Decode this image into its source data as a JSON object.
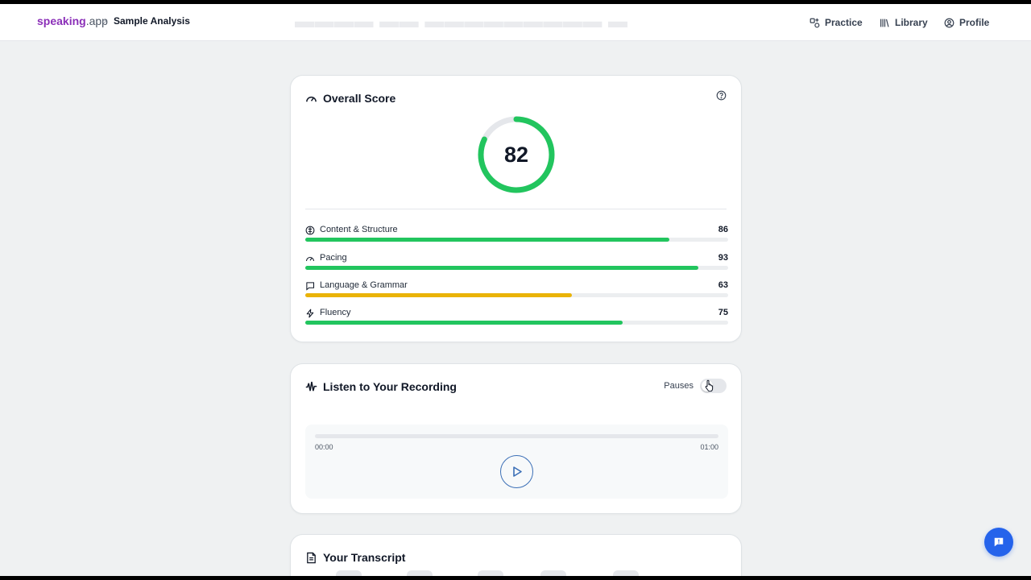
{
  "header": {
    "brand_main": "speaking",
    "brand_suffix": ".app",
    "breadcrumb": "Sample Analysis",
    "nav": {
      "practice": "Practice",
      "library": "Library",
      "profile": "Profile"
    }
  },
  "score_card": {
    "title": "Overall Score",
    "overall": 82,
    "overall_display": "82",
    "metrics": [
      {
        "label": "Content & Structure",
        "value": 86,
        "display": "86",
        "color": "#22c55e",
        "icon": "brain-icon"
      },
      {
        "label": "Pacing",
        "value": 93,
        "display": "93",
        "color": "#22c55e",
        "icon": "gauge-icon"
      },
      {
        "label": "Language & Grammar",
        "value": 63,
        "display": "63",
        "color": "#eab308",
        "icon": "speech-bubble-icon"
      },
      {
        "label": "Fluency",
        "value": 75,
        "display": "75",
        "color": "#22c55e",
        "icon": "lightning-icon"
      }
    ]
  },
  "recording_card": {
    "title": "Listen to Your Recording",
    "pauses_label": "Pauses",
    "current_time": "00:00",
    "duration": "01:00",
    "progress": 0
  },
  "transcript_card": {
    "title": "Your Transcript"
  },
  "colors": {
    "brand": "#8b2fb8",
    "good": "#22c55e",
    "warn": "#eab308",
    "accent": "#2563eb"
  }
}
